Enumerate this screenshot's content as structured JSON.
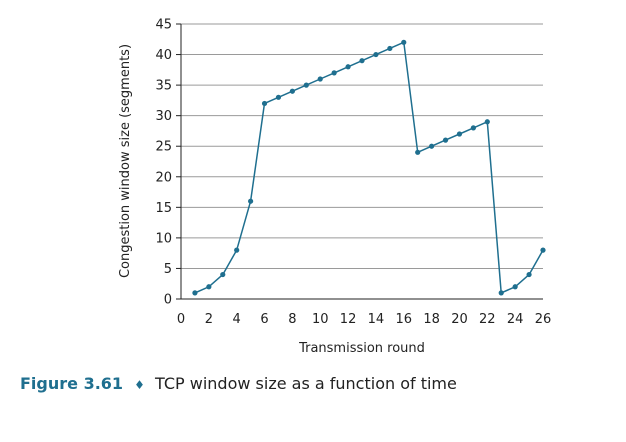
{
  "figure": {
    "number": "Figure 3.61",
    "separator": "♦",
    "caption": "TCP window size as a function of time"
  },
  "chart_data": {
    "type": "line",
    "xlabel": "Transmission round",
    "ylabel": "Congestion window size (segments)",
    "xlim": [
      0,
      26
    ],
    "ylim": [
      0,
      45
    ],
    "xticks": [
      0,
      2,
      4,
      6,
      8,
      10,
      12,
      14,
      16,
      18,
      20,
      22,
      24,
      26
    ],
    "yticks": [
      0,
      5,
      10,
      15,
      20,
      25,
      30,
      35,
      40,
      45
    ],
    "grid": "horizontal",
    "line_color": "#1f6f8f",
    "series": [
      {
        "x": [
          1,
          2,
          3,
          4,
          5,
          6,
          7,
          8,
          9,
          10,
          11,
          12,
          13,
          14,
          15,
          16,
          17,
          18,
          19,
          20,
          21,
          22,
          23,
          24,
          25,
          26
        ],
        "values": [
          1,
          2,
          4,
          8,
          16,
          32,
          33,
          34,
          35,
          36,
          37,
          38,
          39,
          40,
          41,
          42,
          24,
          25,
          26,
          27,
          28,
          29,
          1,
          2,
          4,
          8
        ]
      }
    ]
  }
}
